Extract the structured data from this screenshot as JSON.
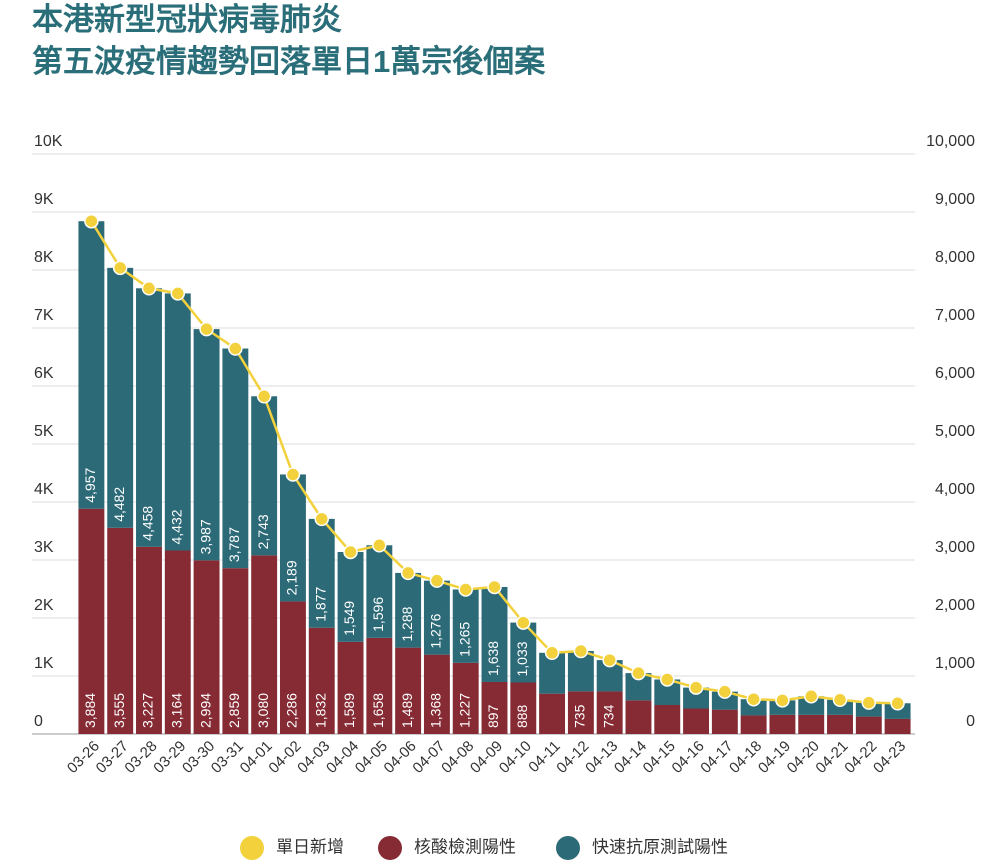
{
  "chart_data": {
    "type": "bar",
    "stacked": true,
    "title": [
      "本港新型冠狀病毒肺炎",
      "第五波疫情趨勢回落單日1萬宗後個案"
    ],
    "categories": [
      "03-26",
      "03-27",
      "03-28",
      "03-29",
      "03-30",
      "03-31",
      "04-01",
      "04-02",
      "04-03",
      "04-04",
      "04-05",
      "04-06",
      "04-07",
      "04-08",
      "04-09",
      "04-10",
      "04-11",
      "04-12",
      "04-13",
      "04-14",
      "04-15",
      "04-16",
      "04-17",
      "04-18",
      "04-19",
      "04-20",
      "04-21",
      "04-22",
      "04-23"
    ],
    "series": [
      {
        "name": "核酸檢測陽性",
        "color": "#862a34",
        "values": [
          3884,
          3555,
          3227,
          3164,
          2994,
          2859,
          3080,
          2286,
          1832,
          1589,
          1658,
          1489,
          1368,
          1227,
          897,
          888,
          695,
          735,
          734,
          580,
          500,
          440,
          420,
          320,
          330,
          330,
          330,
          300,
          260
        ],
        "value_labels": [
          "3,884",
          "3,555",
          "3,227",
          "3,164",
          "2,994",
          "2,859",
          "3,080",
          "2,286",
          "1,832",
          "1,589",
          "1,658",
          "1,489",
          "1,368",
          "1,227",
          "897",
          "888",
          null,
          "735",
          "734",
          null,
          null,
          null,
          null,
          null,
          null,
          null,
          null,
          null,
          null
        ]
      },
      {
        "name": "快速抗原測試陽性",
        "color": "#2c6a77",
        "values": [
          4957,
          4482,
          4458,
          4432,
          3987,
          3787,
          2743,
          2189,
          1877,
          1549,
          1596,
          1288,
          1276,
          1265,
          1638,
          1033,
          705,
          695,
          540,
          470,
          440,
          360,
          310,
          280,
          250,
          320,
          260,
          240,
          270
        ],
        "value_labels": [
          "4,957",
          "4,482",
          "4,458",
          "4,432",
          "3,987",
          "3,787",
          "2,743",
          "2,189",
          "1,877",
          "1,549",
          "1,596",
          "1,288",
          "1,276",
          "1,265",
          "1,638",
          "1,033",
          null,
          null,
          null,
          null,
          null,
          null,
          null,
          null,
          null,
          null,
          null,
          null,
          null
        ]
      },
      {
        "name": "單日新增",
        "type": "line",
        "axis": "y2",
        "color": "#f2d13c",
        "values": [
          8841,
          8037,
          7685,
          7596,
          6981,
          6646,
          5823,
          4475,
          3709,
          3138,
          3254,
          2777,
          2644,
          2492,
          2535,
          1921,
          1400,
          1430,
          1274,
          1050,
          940,
          800,
          730,
          600,
          580,
          650,
          590,
          540,
          530
        ]
      }
    ],
    "ylim": [
      0,
      10000
    ],
    "yticks": [
      0,
      {
        "value": 1000,
        "label": "1K"
      },
      {
        "value": 2000,
        "label": "2K"
      },
      {
        "value": 3000,
        "label": "3K"
      },
      {
        "value": 4000,
        "label": "4K"
      },
      {
        "value": 5000,
        "label": "5K"
      },
      {
        "value": 6000,
        "label": "6K"
      },
      {
        "value": 7000,
        "label": "7K"
      },
      {
        "value": 8000,
        "label": "8K"
      },
      {
        "value": 9000,
        "label": "9K"
      },
      {
        "value": 10000,
        "label": "10K"
      }
    ],
    "y2lim": [
      0,
      10000
    ],
    "y2ticks": [
      0,
      {
        "value": 1000,
        "label": "1,000"
      },
      {
        "value": 2000,
        "label": "2,000"
      },
      {
        "value": 3000,
        "label": "3,000"
      },
      {
        "value": 4000,
        "label": "4,000"
      },
      {
        "value": 5000,
        "label": "5,000"
      },
      {
        "value": 6000,
        "label": "6,000"
      },
      {
        "value": 7000,
        "label": "7,000"
      },
      {
        "value": 8000,
        "label": "8,000"
      },
      {
        "value": 9000,
        "label": "9,000"
      },
      {
        "value": 10000,
        "label": "10,000"
      }
    ],
    "grid": true,
    "legend": "bottom"
  }
}
